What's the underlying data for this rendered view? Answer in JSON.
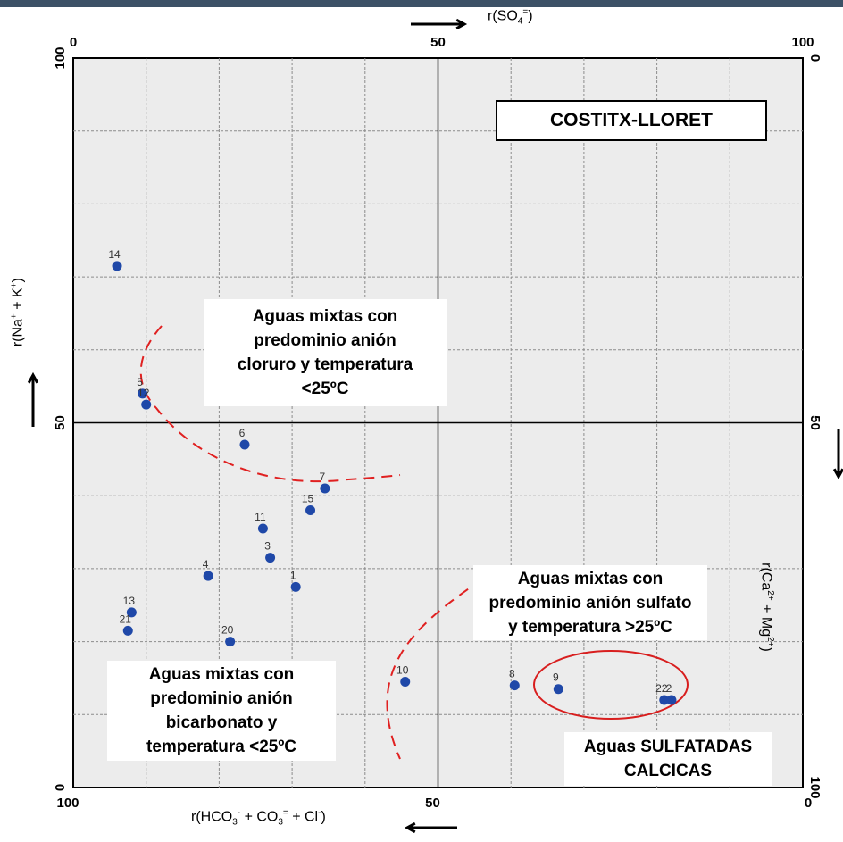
{
  "chart_data": {
    "type": "scatter",
    "title": "COSTITX-LLORET",
    "axes": {
      "bottom": {
        "label_parts": [
          "r(HCO",
          "3",
          "-",
          " + CO",
          "3",
          "=",
          " + Cl",
          "-",
          ")"
        ],
        "ticks": [
          "100",
          "50",
          "0"
        ],
        "range": [
          100,
          0
        ]
      },
      "top": {
        "label_parts": [
          "r(SO",
          "4",
          "=",
          ")"
        ],
        "ticks": [
          "0",
          "50",
          "100"
        ],
        "range": [
          0,
          100
        ]
      },
      "left": {
        "label_parts": [
          "r(Na",
          "+",
          " + K",
          "+",
          ")"
        ],
        "ticks": [
          "0",
          "50",
          "100"
        ],
        "range": [
          0,
          100
        ]
      },
      "right": {
        "label_parts": [
          "r(Ca",
          "2+",
          " + Mg",
          "2+",
          ")"
        ],
        "ticks": [
          "0",
          "50",
          "100"
        ],
        "range": [
          100,
          0
        ]
      }
    },
    "grid": true,
    "points": [
      {
        "label": "14",
        "so4": 6,
        "na_k": 71.5
      },
      {
        "label": "5",
        "so4": 9.5,
        "na_k": 54
      },
      {
        "label": "12",
        "so4": 10,
        "na_k": 52.5
      },
      {
        "label": "6",
        "so4": 23.5,
        "na_k": 47
      },
      {
        "label": "7",
        "so4": 34.5,
        "na_k": 41
      },
      {
        "label": "15",
        "so4": 32.5,
        "na_k": 38
      },
      {
        "label": "11",
        "so4": 26,
        "na_k": 35.5
      },
      {
        "label": "3",
        "so4": 27,
        "na_k": 31.5
      },
      {
        "label": "4",
        "so4": 18.5,
        "na_k": 29
      },
      {
        "label": "1",
        "so4": 30.5,
        "na_k": 27.5
      },
      {
        "label": "13",
        "so4": 8,
        "na_k": 24
      },
      {
        "label": "21",
        "so4": 7.5,
        "na_k": 21.5
      },
      {
        "label": "20",
        "so4": 21.5,
        "na_k": 20
      },
      {
        "label": "10",
        "so4": 45.5,
        "na_k": 14.5
      },
      {
        "label": "8",
        "so4": 60.5,
        "na_k": 14
      },
      {
        "label": "9",
        "so4": 66.5,
        "na_k": 13.5
      },
      {
        "label": "22",
        "so4": 81,
        "na_k": 12
      },
      {
        "label": "2",
        "so4": 82,
        "na_k": 12
      }
    ],
    "point_color": "#1f48a8",
    "boundary_color": "#e02020"
  },
  "annotations": [
    {
      "id": "chloride",
      "text": "Aguas mixtas con\npredominio anión\ncloruro y temperatura\n<25ºC"
    },
    {
      "id": "sulfate",
      "text": "Aguas mixtas con\npredominio anión sulfato\ny temperatura >25ºC"
    },
    {
      "id": "bicarbonate",
      "text": "Aguas mixtas con\npredominio anión\nbicarbonato y\ntemperatura <25ºC"
    },
    {
      "id": "sulfated",
      "text": "Aguas SULFATADAS\nCALCICAS"
    }
  ],
  "arrow_glyphs": {
    "right": "⟶",
    "left": "⟵",
    "up": "⟶"
  }
}
